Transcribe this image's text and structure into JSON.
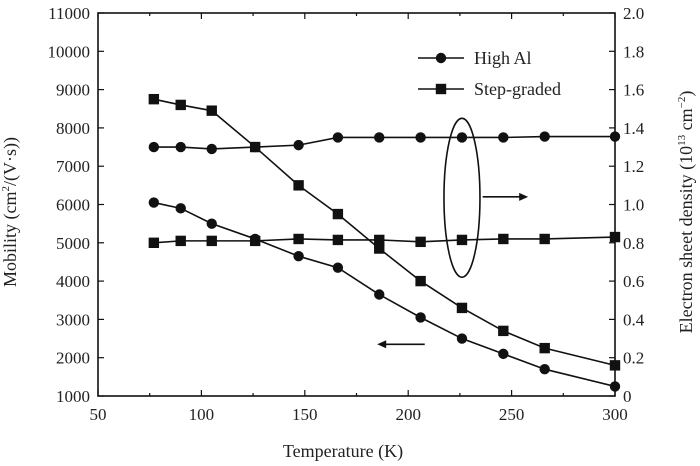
{
  "chart_data": {
    "type": "line",
    "xlabel": "Temperature (K)",
    "ylabel_left": {
      "pre": "Mobility (cm",
      "sup1": "2",
      "mid": "/(V·s))"
    },
    "ylabel_right": {
      "pre": "Electron sheet density (10",
      "sup1": "13",
      "mid": " cm",
      "sup2": "−2",
      "post": ")"
    },
    "xlim": [
      50,
      300
    ],
    "ylim_left": [
      1000,
      11000
    ],
    "ylim_right": [
      0,
      2.0
    ],
    "xticks": [
      "50",
      "100",
      "150",
      "200",
      "250",
      "300"
    ],
    "yticks_left": [
      "1000",
      "2000",
      "3000",
      "4000",
      "5000",
      "6000",
      "7000",
      "8000",
      "9000",
      "10000",
      "11000"
    ],
    "yticks_right": [
      "0",
      "0.2",
      "0.4",
      "0.6",
      "0.8",
      "1.0",
      "1.2",
      "1.4",
      "1.6",
      "1.8",
      "2.0"
    ],
    "legend": [
      {
        "label": "High Al",
        "marker": "circle"
      },
      {
        "label": "Step-graded",
        "marker": "square"
      }
    ],
    "series": [
      {
        "name": "High Al",
        "marker": "circle",
        "axis": "left",
        "x": [
          77,
          90,
          105,
          126,
          147,
          166,
          186,
          206,
          226,
          246,
          266,
          300
        ],
        "y": [
          6050,
          5900,
          5500,
          5100,
          4650,
          4350,
          3650,
          3050,
          2500,
          2100,
          1700,
          1250
        ]
      },
      {
        "name": "Step-graded",
        "marker": "square",
        "axis": "left",
        "x": [
          77,
          90,
          105,
          126,
          147,
          166,
          186,
          206,
          226,
          246,
          266,
          300
        ],
        "y": [
          8750,
          8600,
          8450,
          7500,
          6500,
          5750,
          4850,
          4000,
          3300,
          2700,
          2250,
          1800
        ]
      },
      {
        "name": "High Al",
        "marker": "circle",
        "axis": "right",
        "x": [
          77,
          90,
          105,
          126,
          147,
          166,
          186,
          206,
          226,
          246,
          266,
          300
        ],
        "y": [
          1.3,
          1.3,
          1.29,
          1.3,
          1.31,
          1.35,
          1.35,
          1.35,
          1.35,
          1.35,
          1.355,
          1.355
        ]
      },
      {
        "name": "Step-graded",
        "marker": "square",
        "axis": "right",
        "x": [
          77,
          90,
          105,
          126,
          147,
          166,
          186,
          206,
          226,
          246,
          266,
          300
        ],
        "y": [
          0.8,
          0.81,
          0.81,
          0.81,
          0.82,
          0.815,
          0.815,
          0.805,
          0.815,
          0.82,
          0.82,
          0.83
        ]
      }
    ],
    "annotations": [
      {
        "type": "ellipse",
        "about_x": 226,
        "about_y_right": [
          0.62,
          1.45
        ]
      },
      {
        "type": "arrow",
        "direction": "right",
        "at_x": [
          236,
          258
        ],
        "at_y_right": 1.04
      },
      {
        "type": "arrow",
        "direction": "left",
        "at_x": [
          185,
          208
        ],
        "at_y_left": 2350
      }
    ]
  }
}
